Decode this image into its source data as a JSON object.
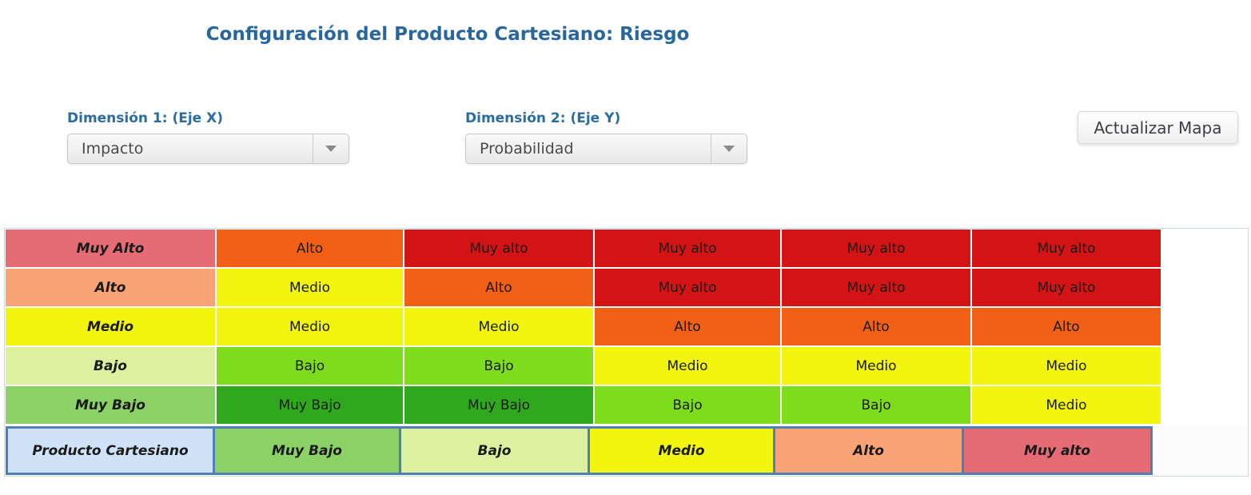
{
  "title": "Configuración del Producto Cartesiano: Riesgo",
  "controls": {
    "dimension1": {
      "label": "Dimensión 1: (Eje X)",
      "value": "Impacto"
    },
    "dimension2": {
      "label": "Dimensión 2: (Eje Y)",
      "value": "Probabilidad"
    },
    "update_button": "Actualizar Mapa"
  },
  "palette": {
    "accent_blue": "#28679e",
    "label_blue": "#2b6ca3",
    "cartesian_border_blue": "#4d80b8",
    "red": "#d41414",
    "orange": "#f26016",
    "yellow": "#f2f50d",
    "green": "#7ddd1d",
    "dark_green": "#2fa81e",
    "rose": "#e56b74",
    "salmon": "#f9a377",
    "pale_green": "#dcf0a0",
    "mid_green": "#8bd166",
    "light_blue": "#cfe2f8"
  },
  "matrix": {
    "rows": [
      {
        "header": {
          "label": "Muy Alto",
          "bg": "#e56b74"
        },
        "cells": [
          {
            "label": "Alto",
            "bg": "#f26016"
          },
          {
            "label": "Muy alto",
            "bg": "#d41414"
          },
          {
            "label": "Muy alto",
            "bg": "#d41414"
          },
          {
            "label": "Muy alto",
            "bg": "#d41414"
          },
          {
            "label": "Muy alto",
            "bg": "#d41414"
          }
        ]
      },
      {
        "header": {
          "label": "Alto",
          "bg": "#f9a377"
        },
        "cells": [
          {
            "label": "Medio",
            "bg": "#f2f50d"
          },
          {
            "label": "Alto",
            "bg": "#f26016"
          },
          {
            "label": "Muy alto",
            "bg": "#d41414"
          },
          {
            "label": "Muy alto",
            "bg": "#d41414"
          },
          {
            "label": "Muy alto",
            "bg": "#d41414"
          }
        ]
      },
      {
        "header": {
          "label": "Medio",
          "bg": "#f2f50d"
        },
        "cells": [
          {
            "label": "Medio",
            "bg": "#f2f50d"
          },
          {
            "label": "Medio",
            "bg": "#f2f50d"
          },
          {
            "label": "Alto",
            "bg": "#f26016"
          },
          {
            "label": "Alto",
            "bg": "#f26016"
          },
          {
            "label": "Alto",
            "bg": "#f26016"
          }
        ]
      },
      {
        "header": {
          "label": "Bajo",
          "bg": "#dcf0a0"
        },
        "cells": [
          {
            "label": "Bajo",
            "bg": "#7ddd1d"
          },
          {
            "label": "Bajo",
            "bg": "#7ddd1d"
          },
          {
            "label": "Medio",
            "bg": "#f2f50d"
          },
          {
            "label": "Medio",
            "bg": "#f2f50d"
          },
          {
            "label": "Medio",
            "bg": "#f2f50d"
          }
        ]
      },
      {
        "header": {
          "label": "Muy Bajo",
          "bg": "#8bd166"
        },
        "cells": [
          {
            "label": "Muy Bajo",
            "bg": "#2fa81e"
          },
          {
            "label": "Muy Bajo",
            "bg": "#2fa81e"
          },
          {
            "label": "Bajo",
            "bg": "#7ddd1d"
          },
          {
            "label": "Bajo",
            "bg": "#7ddd1d"
          },
          {
            "label": "Medio",
            "bg": "#f2f50d"
          }
        ]
      }
    ],
    "cartesian_row": {
      "header": {
        "label": "Producto Cartesiano",
        "bg": "#cfe2f8"
      },
      "cells": [
        {
          "label": "Muy Bajo",
          "bg": "#8bd166"
        },
        {
          "label": "Bajo",
          "bg": "#dcf0a0"
        },
        {
          "label": "Medio",
          "bg": "#f2f50d"
        },
        {
          "label": "Alto",
          "bg": "#f9a377"
        },
        {
          "label": "Muy alto",
          "bg": "#e56b74"
        }
      ]
    }
  }
}
